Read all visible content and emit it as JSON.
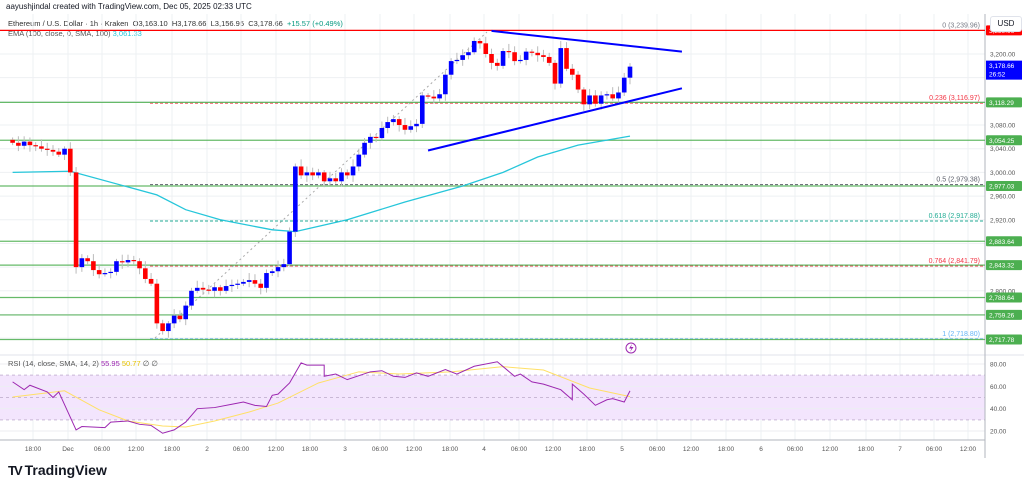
{
  "header": {
    "credit": "aayushjindal created with TradingView.com, Dec 05, 2025 02:33 UTC",
    "symbol": "Ethereum / U.S. Dollar · 1h · Kraken",
    "open": "O3,163.10",
    "high": "H3,178.66",
    "low": "L3,156.95",
    "close": "C3,178.66",
    "change": "+15.57 (+0.49%)",
    "ema_label": "EMA (100, close, 0, SMA, 100)",
    "ema_value": "3,061.33"
  },
  "price_axis": {
    "currency": "USD",
    "ticks": [
      "3,200.00",
      "3,080.00",
      "3,040.00",
      "3,000.00",
      "2,960.00",
      "2,920.00",
      "2,800.00"
    ],
    "tick_values": [
      3200,
      3080,
      3040,
      3000,
      2960,
      2920,
      2800
    ],
    "current_price": "3,178.66",
    "countdown": "26:52",
    "top_level_label": "3,239.96"
  },
  "levels": {
    "horizontal": [
      {
        "value": 3118.29,
        "label": "3,118.29"
      },
      {
        "value": 3054.25,
        "label": "3,054.25"
      },
      {
        "value": 2977.03,
        "label": "2,977.03"
      },
      {
        "value": 2883.64,
        "label": "2,883.64"
      },
      {
        "value": 2843.32,
        "label": "2,843.32"
      },
      {
        "value": 2788.64,
        "label": "2,788.64"
      },
      {
        "value": 2759.26,
        "label": "2,759.26"
      },
      {
        "value": 2717.78,
        "label": "2,717.78"
      }
    ],
    "fibonacci": [
      {
        "value": 3239.96,
        "label": "0 (3,239.96)",
        "color": "#787b86"
      },
      {
        "value": 3116.97,
        "label": "0.236 (3,116.97)",
        "color": "#f23645"
      },
      {
        "value": 2979.38,
        "label": "0.5 (2,979.38)",
        "color": "#5d606b"
      },
      {
        "value": 2917.88,
        "label": "0.618 (2,917.88)",
        "color": "#22ab94"
      },
      {
        "value": 2841.79,
        "label": "0.764 (2,841.79)",
        "color": "#f23645"
      },
      {
        "value": 2718.8,
        "label": "1 (2,718.80)",
        "color": "#64b5f6"
      }
    ]
  },
  "time_axis": {
    "labels": [
      "18:00",
      "Dec",
      "06:00",
      "12:00",
      "18:00",
      "2",
      "06:00",
      "12:00",
      "18:00",
      "3",
      "06:00",
      "12:00",
      "18:00",
      "4",
      "06:00",
      "12:00",
      "18:00",
      "5",
      "06:00",
      "12:00",
      "18:00",
      "6",
      "06:00",
      "12:00",
      "18:00",
      "7",
      "06:00",
      "12:00"
    ]
  },
  "rsi": {
    "label": "RSI (14, close, SMA, 14, 2)",
    "value": "55.95",
    "sma_value": "50.77",
    "extra1": "∅",
    "extra2": "∅",
    "ticks": [
      "80.00",
      "60.00",
      "40.00",
      "20.00"
    ],
    "tick_values": [
      80,
      60,
      40,
      20
    ],
    "band": [
      30,
      70
    ]
  },
  "colors": {
    "up": "#0000ff",
    "down": "#ff0000",
    "ema": "#26c6da",
    "levels": "#4caf50",
    "trendline": "#0000ff",
    "rsi": "#9c27b0",
    "rsi_sma": "#ffe066",
    "rsi_band": "#f3e5fd"
  },
  "icons": {
    "alert": "lightning-alert-icon",
    "logo": "tradingview-logo"
  },
  "footer": {
    "brand": "TradingView"
  },
  "chart_data": {
    "type": "candlestick",
    "interval": "1h",
    "y_range": [
      2700,
      3260
    ],
    "closes": [
      3050,
      3045,
      3052,
      3046,
      3044,
      3040,
      3038,
      3035,
      3030,
      3040,
      3000,
      2840,
      2855,
      2850,
      2835,
      2828,
      2830,
      2832,
      2850,
      2848,
      2852,
      2850,
      2838,
      2820,
      2812,
      2745,
      2732,
      2745,
      2758,
      2752,
      2775,
      2800,
      2805,
      2802,
      2800,
      2806,
      2800,
      2808,
      2810,
      2812,
      2815,
      2818,
      2812,
      2805,
      2830,
      2833,
      2840,
      2845,
      2900,
      3010,
      2995,
      3000,
      2995,
      3000,
      2985,
      2990,
      2985,
      3000,
      2995,
      3010,
      3030,
      3050,
      3060,
      3058,
      3075,
      3085,
      3090,
      3080,
      3072,
      3078,
      3082,
      3130,
      3128,
      3125,
      3132,
      3165,
      3188,
      3190,
      3198,
      3203,
      3222,
      3218,
      3200,
      3185,
      3180,
      3205,
      3203,
      3188,
      3190,
      3204,
      3202,
      3198,
      3195,
      3185,
      3150,
      3210,
      3175,
      3165,
      3140,
      3115,
      3130,
      3116,
      3130,
      3132,
      3125,
      3135,
      3160,
      3178.66
    ],
    "ema100": [
      [
        0,
        3000
      ],
      [
        10,
        3002
      ],
      [
        25,
        2962
      ],
      [
        30,
        2937
      ],
      [
        36,
        2920
      ],
      [
        45,
        2903
      ],
      [
        49,
        2900
      ],
      [
        58,
        2920
      ],
      [
        68,
        2950
      ],
      [
        78,
        2977
      ],
      [
        85,
        3000
      ],
      [
        91,
        3026
      ],
      [
        98,
        3046
      ],
      [
        107,
        3061.33
      ]
    ],
    "trendlines": [
      {
        "from": [
          83,
          3239
        ],
        "to": [
          116,
          3204
        ]
      },
      {
        "from": [
          72,
          3037
        ],
        "to": [
          116,
          3142
        ]
      }
    ],
    "rsi_series": [
      [
        0,
        64
      ],
      [
        2,
        57
      ],
      [
        3,
        61
      ],
      [
        6,
        55
      ],
      [
        7,
        50
      ],
      [
        8,
        55
      ],
      [
        11,
        21
      ],
      [
        12,
        24
      ],
      [
        16,
        23
      ],
      [
        17,
        28
      ],
      [
        20,
        29
      ],
      [
        22,
        26
      ],
      [
        24,
        25
      ],
      [
        26,
        18
      ],
      [
        28,
        21
      ],
      [
        30,
        28
      ],
      [
        32,
        40
      ],
      [
        35,
        41
      ],
      [
        38,
        44
      ],
      [
        40,
        46
      ],
      [
        42,
        43
      ],
      [
        44,
        42
      ],
      [
        45,
        52
      ],
      [
        46,
        53
      ],
      [
        48,
        63
      ],
      [
        50,
        81
      ],
      [
        51,
        79
      ],
      [
        54,
        79
      ],
      [
        54,
        69
      ],
      [
        56,
        71
      ],
      [
        58,
        66
      ],
      [
        62,
        73
      ],
      [
        64,
        74
      ],
      [
        66,
        69
      ],
      [
        68,
        68
      ],
      [
        70,
        72
      ],
      [
        72,
        69
      ],
      [
        75,
        75
      ],
      [
        77,
        71
      ],
      [
        80,
        78
      ],
      [
        84,
        82
      ],
      [
        87,
        69
      ],
      [
        88,
        71
      ],
      [
        90,
        64
      ],
      [
        92,
        62
      ],
      [
        95,
        57
      ],
      [
        97,
        48
      ],
      [
        97,
        62
      ],
      [
        99,
        53
      ],
      [
        101,
        43
      ],
      [
        103,
        48
      ],
      [
        104,
        49
      ],
      [
        106,
        46
      ],
      [
        107,
        55.95
      ]
    ],
    "rsi_sma_series": [
      [
        0,
        50.5
      ],
      [
        9,
        56
      ],
      [
        15,
        39
      ],
      [
        20,
        29
      ],
      [
        26,
        24.5
      ],
      [
        30,
        23.6
      ],
      [
        35,
        29
      ],
      [
        41,
        37
      ],
      [
        46,
        45
      ],
      [
        53,
        63
      ],
      [
        60,
        73
      ],
      [
        67,
        71
      ],
      [
        76,
        73
      ],
      [
        85,
        77.6
      ],
      [
        92,
        74.6
      ],
      [
        100,
        58.5
      ],
      [
        107,
        50.77
      ]
    ]
  }
}
